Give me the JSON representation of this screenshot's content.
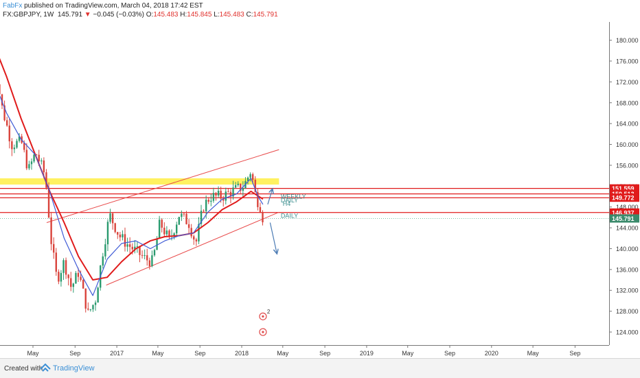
{
  "header": {
    "author": "FabFx",
    "published_text": " published on TradingView.com, March 04, 2018 17:42 EST",
    "symbol": "FX:GBPJPY, 1W",
    "last": "145.791",
    "change_arrow": "▼",
    "change": "−0.045 (−0.03%)",
    "o_label": "O:",
    "o": "145.483",
    "h_label": "H:",
    "h": "145.845",
    "l_label": "L:",
    "l": "145.483",
    "c_label": "C:",
    "c": "145.791"
  },
  "footer": {
    "created_with": "Created with",
    "brand": "TradingView"
  },
  "colors": {
    "bull": "#2a9a6e",
    "bear": "#d9433b",
    "ma_fast": "#3f5bd6",
    "ma_slow": "#e01b1b",
    "channel": "#e84a4a",
    "zone": "#ffee44",
    "level": "#e01b1b",
    "arrow": "#4a7ab3",
    "label_teal": "#3c8f8f"
  },
  "chart_data": {
    "type": "candlestick",
    "symbol": "FX:GBPJPY",
    "interval": "1W",
    "y_range": [
      121.5,
      183.5
    ],
    "y_ticks": [
      124,
      128,
      132,
      136,
      140,
      144,
      148,
      152,
      156,
      160,
      164,
      168,
      172,
      176,
      180
    ],
    "y_tick_labels": [
      "124.000",
      "128.000",
      "132.000",
      "136.000",
      "140.000",
      "144.000",
      "148.000",
      "152.000",
      "156.000",
      "160.000",
      "164.000",
      "168.000",
      "172.000",
      "176.000",
      "180.000"
    ],
    "x_ticks": [
      {
        "label": "May",
        "date": "2016-05"
      },
      {
        "label": "Sep",
        "date": "2016-09"
      },
      {
        "label": "2017",
        "date": "2017-01"
      },
      {
        "label": "May",
        "date": "2017-05"
      },
      {
        "label": "Sep",
        "date": "2017-09"
      },
      {
        "label": "2018",
        "date": "2018-01"
      },
      {
        "label": "May",
        "date": "2018-05"
      },
      {
        "label": "Sep",
        "date": "2018-09"
      },
      {
        "label": "2019",
        "date": "2019-01"
      },
      {
        "label": "May",
        "date": "2019-05"
      },
      {
        "label": "Sep",
        "date": "2019-09"
      },
      {
        "label": "2020",
        "date": "2020-01"
      },
      {
        "label": "May",
        "date": "2020-05"
      },
      {
        "label": "Sep",
        "date": "2020-09"
      }
    ],
    "price_points": [
      {
        "date": "2016-01-03",
        "v": 178.0
      },
      {
        "date": "2016-02-01",
        "v": 167.0
      },
      {
        "date": "2016-02-29",
        "v": 160.0
      },
      {
        "date": "2016-03-28",
        "v": 160.5
      },
      {
        "date": "2016-04-18",
        "v": 155.0
      },
      {
        "date": "2016-05-09",
        "v": 158.5
      },
      {
        "date": "2016-06-06",
        "v": 154.0
      },
      {
        "date": "2016-06-24",
        "v": 141.0
      },
      {
        "date": "2016-07-10",
        "v": 134.0
      },
      {
        "date": "2016-07-31",
        "v": 137.5
      },
      {
        "date": "2016-08-21",
        "v": 132.5
      },
      {
        "date": "2016-09-11",
        "v": 135.5
      },
      {
        "date": "2016-10-09",
        "v": 127.5
      },
      {
        "date": "2016-10-30",
        "v": 130.0
      },
      {
        "date": "2016-11-20",
        "v": 139.0
      },
      {
        "date": "2016-12-11",
        "v": 146.5
      },
      {
        "date": "2017-01-08",
        "v": 142.5
      },
      {
        "date": "2017-01-29",
        "v": 141.0
      },
      {
        "date": "2017-02-26",
        "v": 139.5
      },
      {
        "date": "2017-03-26",
        "v": 138.0
      },
      {
        "date": "2017-04-16",
        "v": 137.5
      },
      {
        "date": "2017-05-07",
        "v": 145.0
      },
      {
        "date": "2017-06-04",
        "v": 141.5
      },
      {
        "date": "2017-07-02",
        "v": 146.5
      },
      {
        "date": "2017-07-30",
        "v": 145.0
      },
      {
        "date": "2017-08-20",
        "v": 141.0
      },
      {
        "date": "2017-09-10",
        "v": 148.0
      },
      {
        "date": "2017-10-01",
        "v": 150.0
      },
      {
        "date": "2017-11-05",
        "v": 150.0
      },
      {
        "date": "2017-12-03",
        "v": 151.0
      },
      {
        "date": "2018-01-07",
        "v": 152.0
      },
      {
        "date": "2018-01-28",
        "v": 155.0
      },
      {
        "date": "2018-02-11",
        "v": 150.0
      },
      {
        "date": "2018-02-25",
        "v": 148.0
      },
      {
        "date": "2018-03-04",
        "v": 145.791
      }
    ],
    "ma_fast": [
      {
        "date": "2016-01-03",
        "v": 173.0
      },
      {
        "date": "2016-02-14",
        "v": 166.0
      },
      {
        "date": "2016-03-27",
        "v": 161.0
      },
      {
        "date": "2016-05-08",
        "v": 158.0
      },
      {
        "date": "2016-06-19",
        "v": 151.0
      },
      {
        "date": "2016-07-31",
        "v": 142.0
      },
      {
        "date": "2016-09-11",
        "v": 136.0
      },
      {
        "date": "2016-10-23",
        "v": 131.0
      },
      {
        "date": "2016-12-04",
        "v": 138.0
      },
      {
        "date": "2017-01-15",
        "v": 141.0
      },
      {
        "date": "2017-02-26",
        "v": 141.5
      },
      {
        "date": "2017-04-09",
        "v": 140.0
      },
      {
        "date": "2017-05-21",
        "v": 141.5
      },
      {
        "date": "2017-07-02",
        "v": 142.5
      },
      {
        "date": "2017-08-13",
        "v": 143.0
      },
      {
        "date": "2017-09-24",
        "v": 147.0
      },
      {
        "date": "2017-11-05",
        "v": 149.5
      },
      {
        "date": "2017-12-17",
        "v": 150.5
      },
      {
        "date": "2018-01-28",
        "v": 153.5
      },
      {
        "date": "2018-02-18",
        "v": 150.0
      },
      {
        "date": "2018-03-04",
        "v": 148.5
      }
    ],
    "ma_slow": [
      {
        "date": "2016-01-03",
        "v": 180.0
      },
      {
        "date": "2016-02-14",
        "v": 173.0
      },
      {
        "date": "2016-03-27",
        "v": 165.0
      },
      {
        "date": "2016-05-08",
        "v": 158.0
      },
      {
        "date": "2016-06-19",
        "v": 151.0
      },
      {
        "date": "2016-07-31",
        "v": 145.0
      },
      {
        "date": "2016-09-11",
        "v": 138.5
      },
      {
        "date": "2016-10-23",
        "v": 134.0
      },
      {
        "date": "2016-12-04",
        "v": 134.5
      },
      {
        "date": "2017-01-15",
        "v": 137.5
      },
      {
        "date": "2017-02-26",
        "v": 140.0
      },
      {
        "date": "2017-04-09",
        "v": 141.5
      },
      {
        "date": "2017-05-21",
        "v": 142.3
      },
      {
        "date": "2017-07-02",
        "v": 142.5
      },
      {
        "date": "2017-08-13",
        "v": 143.0
      },
      {
        "date": "2017-09-24",
        "v": 145.0
      },
      {
        "date": "2017-11-05",
        "v": 147.5
      },
      {
        "date": "2017-12-17",
        "v": 149.0
      },
      {
        "date": "2018-01-28",
        "v": 151.0
      },
      {
        "date": "2018-03-04",
        "v": 149.5
      }
    ],
    "channel": {
      "upper": [
        {
          "date": "2016-06-10",
          "v": 145.0
        },
        {
          "date": "2018-04-20",
          "v": 159.0
        }
      ],
      "lower": [
        {
          "date": "2016-12-01",
          "v": 133.0
        },
        {
          "date": "2018-04-20",
          "v": 147.0
        }
      ]
    },
    "zone": {
      "from_date": "2016-01-15",
      "to_date": "2018-04-20",
      "low": 152.3,
      "high": 153.5
    },
    "horizontal_levels": [
      {
        "price": 151.559,
        "label": "151.559",
        "style": "solid"
      },
      {
        "price": 150.513,
        "label": "150.513",
        "style": "solid"
      },
      {
        "price": 149.772,
        "label": "149.772",
        "style": "solid"
      },
      {
        "price": 146.937,
        "label": "146.937",
        "style": "solid"
      },
      {
        "price": 145.791,
        "label": "145.791",
        "style": "last_price"
      }
    ],
    "text_labels": [
      {
        "text": "WEEKLY",
        "date": "2018-04-25",
        "price": 150.0
      },
      {
        "text": "DAILY",
        "date": "2018-04-25",
        "price": 149.3
      },
      {
        "text": "H4",
        "date": "2018-05-01",
        "price": 148.6
      },
      {
        "text": "DAILY",
        "date": "2018-04-25",
        "price": 146.3
      }
    ],
    "arrows": [
      {
        "from": {
          "date": "2018-03-18",
          "v": 148.5
        },
        "to": {
          "date": "2018-04-01",
          "v": 151.5
        }
      },
      {
        "from": {
          "date": "2018-03-25",
          "v": 145.0
        },
        "to": {
          "date": "2018-04-14",
          "v": 139.0
        }
      }
    ],
    "event_markers": [
      {
        "date": "2018-03-04",
        "price": 127.0,
        "label": "2"
      },
      {
        "date": "2018-03-04",
        "price": 124.0,
        "label": ""
      }
    ]
  }
}
